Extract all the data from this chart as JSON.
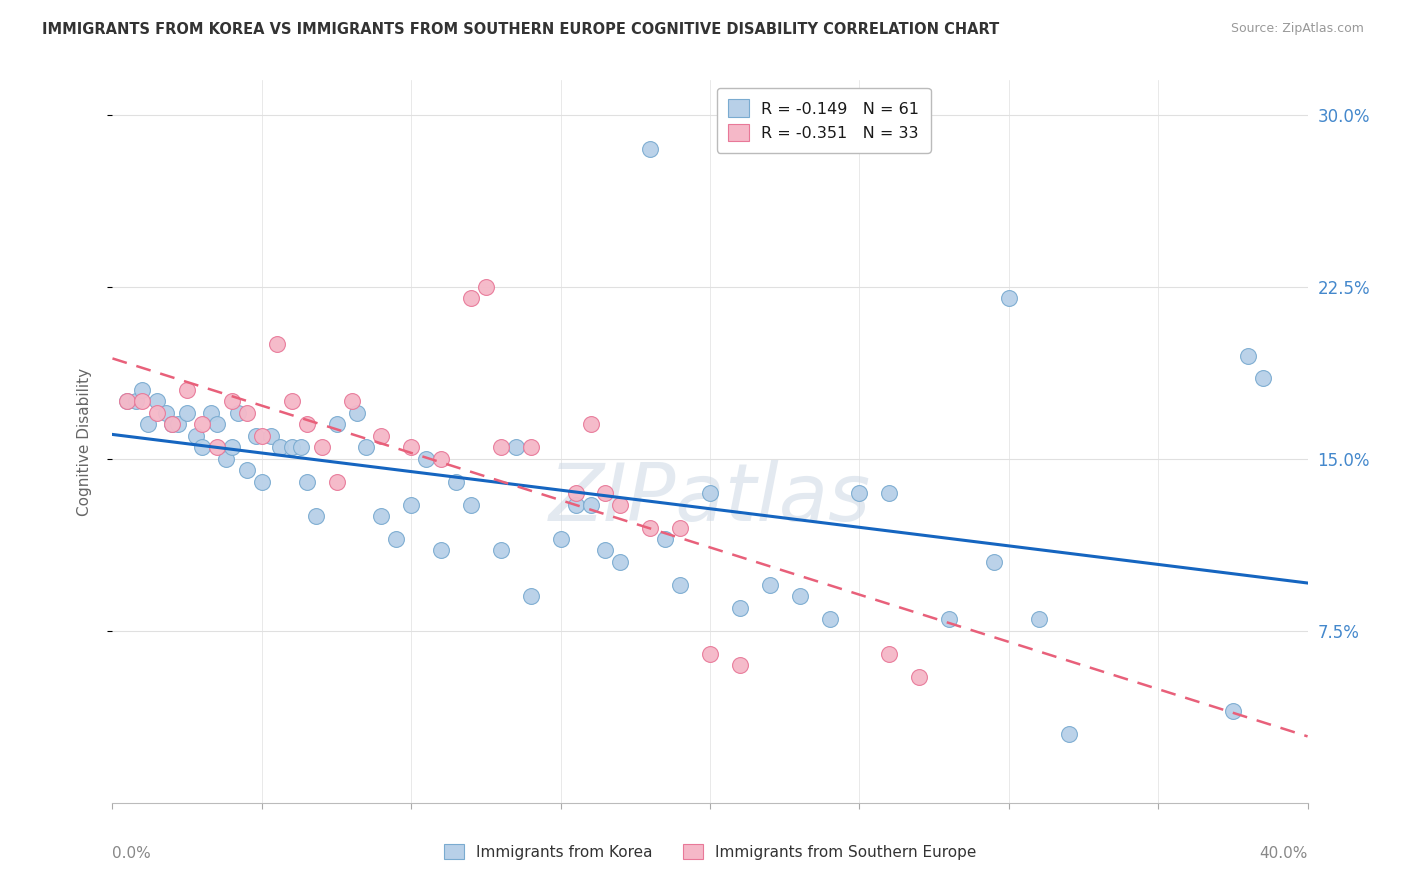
{
  "title": "IMMIGRANTS FROM KOREA VS IMMIGRANTS FROM SOUTHERN EUROPE COGNITIVE DISABILITY CORRELATION CHART",
  "source": "Source: ZipAtlas.com",
  "ylabel": "Cognitive Disability",
  "yticks_labels": [
    "7.5%",
    "15.0%",
    "22.5%",
    "30.0%"
  ],
  "yticks_vals": [
    0.075,
    0.15,
    0.225,
    0.3
  ],
  "xlim": [
    0.0,
    0.4
  ],
  "ylim": [
    0.0,
    0.315
  ],
  "xtick_label_left": "0.0%",
  "xtick_label_right": "40.0%",
  "korea_R": -0.149,
  "korea_N": 61,
  "southern_R": -0.351,
  "southern_N": 33,
  "korea_color": "#b8d0e8",
  "korea_edge": "#7aabd0",
  "southern_color": "#f5b8c8",
  "southern_edge": "#e87898",
  "trendline_korea": "#1565c0",
  "trendline_southern": "#e8607a",
  "watermark": "ZIPatlas",
  "background": "#ffffff",
  "grid_color": "#e0e0e0",
  "korea_x": [
    0.005,
    0.008,
    0.01,
    0.012,
    0.015,
    0.018,
    0.02,
    0.022,
    0.025,
    0.028,
    0.03,
    0.033,
    0.035,
    0.038,
    0.04,
    0.042,
    0.045,
    0.048,
    0.05,
    0.053,
    0.056,
    0.06,
    0.063,
    0.065,
    0.068,
    0.075,
    0.082,
    0.085,
    0.09,
    0.095,
    0.1,
    0.105,
    0.11,
    0.115,
    0.12,
    0.13,
    0.135,
    0.14,
    0.15,
    0.155,
    0.16,
    0.165,
    0.17,
    0.18,
    0.185,
    0.19,
    0.2,
    0.21,
    0.22,
    0.23,
    0.24,
    0.25,
    0.26,
    0.28,
    0.295,
    0.3,
    0.31,
    0.32,
    0.375,
    0.38,
    0.385
  ],
  "korea_y": [
    0.175,
    0.175,
    0.18,
    0.165,
    0.175,
    0.17,
    0.165,
    0.165,
    0.17,
    0.16,
    0.155,
    0.17,
    0.165,
    0.15,
    0.155,
    0.17,
    0.145,
    0.16,
    0.14,
    0.16,
    0.155,
    0.155,
    0.155,
    0.14,
    0.125,
    0.165,
    0.17,
    0.155,
    0.125,
    0.115,
    0.13,
    0.15,
    0.11,
    0.14,
    0.13,
    0.11,
    0.155,
    0.09,
    0.115,
    0.13,
    0.13,
    0.11,
    0.105,
    0.285,
    0.115,
    0.095,
    0.135,
    0.085,
    0.095,
    0.09,
    0.08,
    0.135,
    0.135,
    0.08,
    0.105,
    0.22,
    0.08,
    0.03,
    0.04,
    0.195,
    0.185
  ],
  "southern_x": [
    0.005,
    0.01,
    0.015,
    0.02,
    0.025,
    0.03,
    0.035,
    0.04,
    0.045,
    0.05,
    0.055,
    0.06,
    0.065,
    0.07,
    0.075,
    0.08,
    0.09,
    0.1,
    0.11,
    0.12,
    0.125,
    0.13,
    0.14,
    0.155,
    0.16,
    0.165,
    0.17,
    0.18,
    0.19,
    0.2,
    0.21,
    0.26,
    0.27
  ],
  "southern_y": [
    0.175,
    0.175,
    0.17,
    0.165,
    0.18,
    0.165,
    0.155,
    0.175,
    0.17,
    0.16,
    0.2,
    0.175,
    0.165,
    0.155,
    0.14,
    0.175,
    0.16,
    0.155,
    0.15,
    0.22,
    0.225,
    0.155,
    0.155,
    0.135,
    0.165,
    0.135,
    0.13,
    0.12,
    0.12,
    0.065,
    0.06,
    0.065,
    0.055
  ]
}
